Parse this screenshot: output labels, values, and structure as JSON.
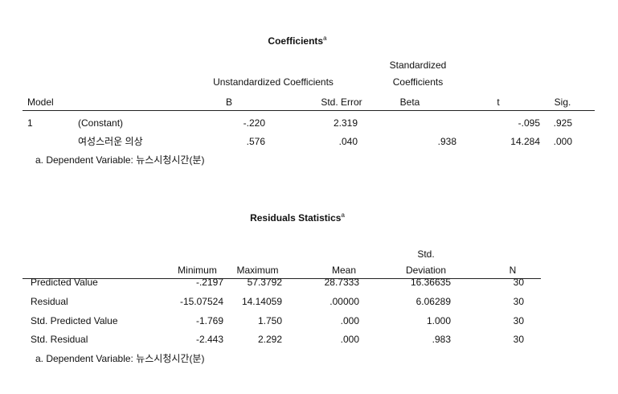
{
  "coefficients": {
    "title": "Coefficients",
    "title_sup": "a",
    "group_headers": {
      "unstandardized": "Unstandardized Coefficients",
      "standardized_line1": "Standardized",
      "standardized_line2": "Coefficients"
    },
    "columns": [
      "Model",
      "B",
      "Std. Error",
      "Beta",
      "t",
      "Sig."
    ],
    "rows": [
      {
        "model": "1",
        "term": "(Constant)",
        "b": "-.220",
        "se": "2.319",
        "beta": "",
        "t": "-.095",
        "sig": ".925"
      },
      {
        "model": "",
        "term": "여성스러운 의상",
        "b": ".576",
        "se": ".040",
        "beta": ".938",
        "t": "14.284",
        "sig": ".000"
      }
    ],
    "footnote": "a. Dependent Variable: 뉴스시청시간(분)"
  },
  "residuals": {
    "title": "Residuals Statistics",
    "title_sup": "a",
    "columns": [
      "Minimum",
      "Maximum",
      "Mean",
      "Std.",
      "Deviation",
      "N"
    ],
    "rows": [
      {
        "label": "Predicted Value",
        "min": "-.2197",
        "max": "57.3792",
        "mean": "28.7333",
        "sd": "16.36635",
        "n": "30"
      },
      {
        "label": "Residual",
        "min": "-15.07524",
        "max": "14.14059",
        "mean": ".00000",
        "sd": "6.06289",
        "n": "30"
      },
      {
        "label": "Std. Predicted Value",
        "min": "-1.769",
        "max": "1.750",
        "mean": ".000",
        "sd": "1.000",
        "n": "30"
      },
      {
        "label": "Std. Residual",
        "min": "-2.443",
        "max": "2.292",
        "mean": ".000",
        "sd": ".983",
        "n": "30"
      }
    ],
    "footnote": "a. Dependent Variable: 뉴스시청시간(분)"
  }
}
